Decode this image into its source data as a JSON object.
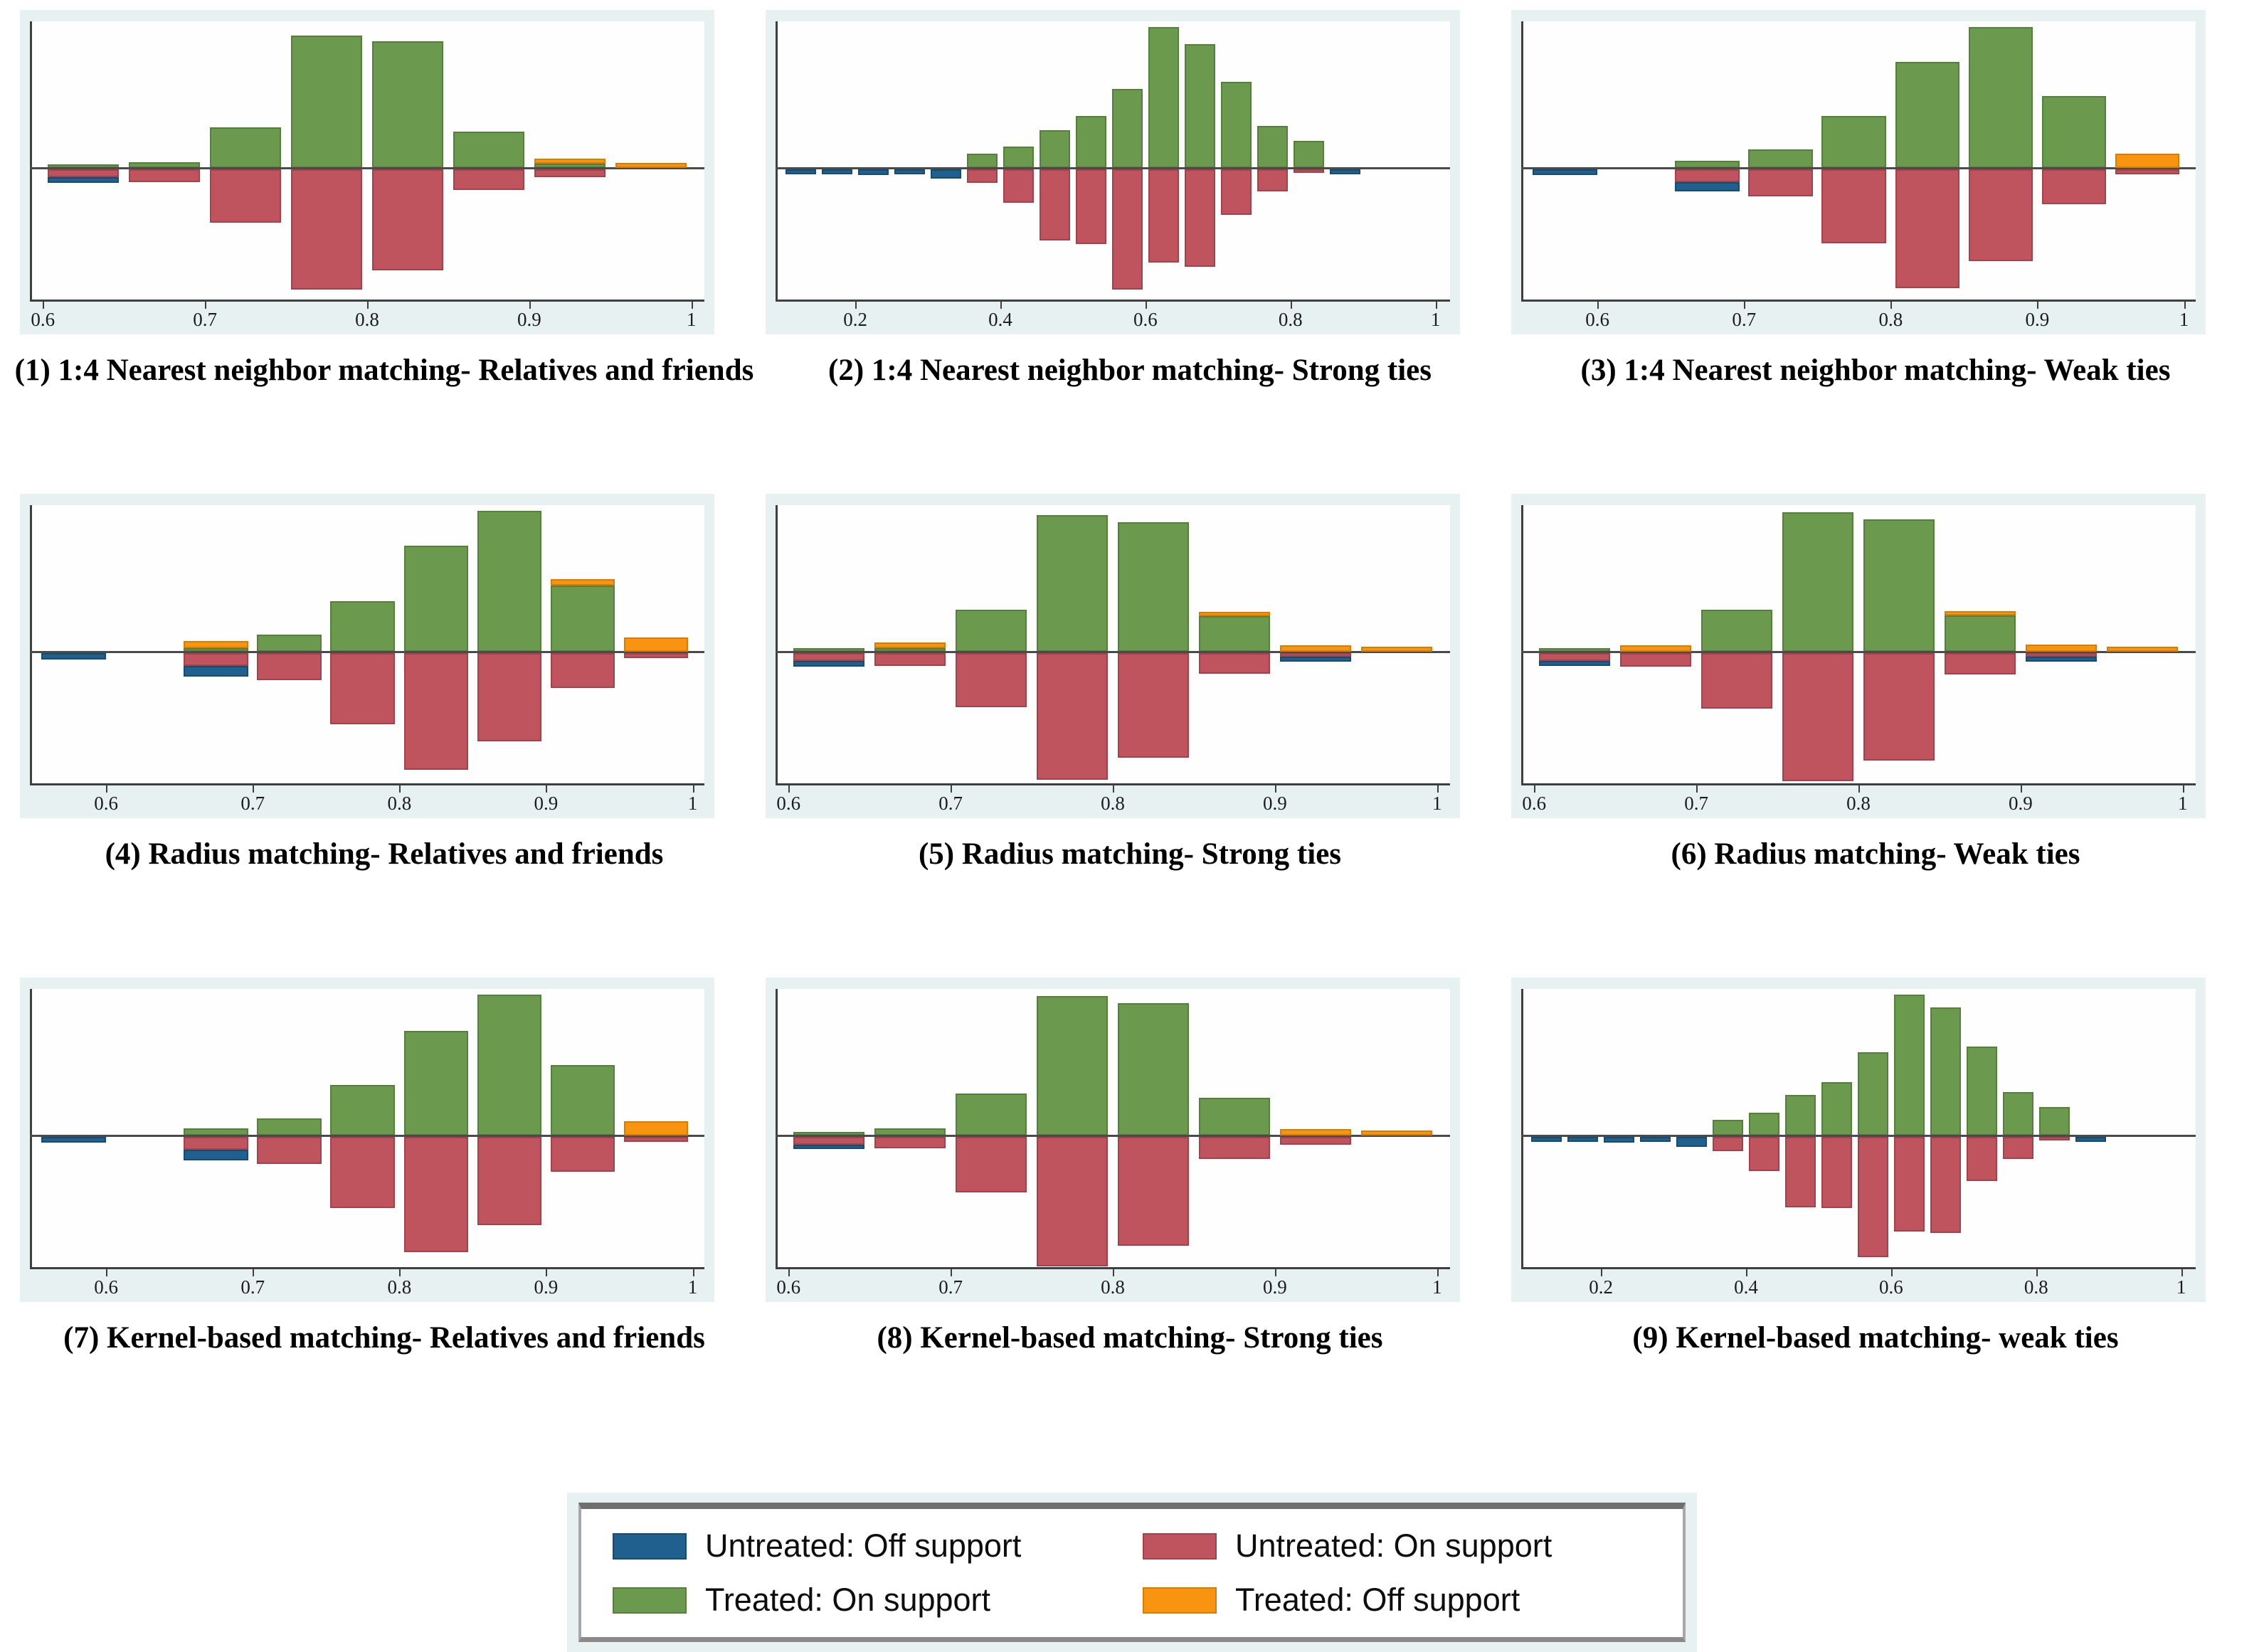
{
  "figure": {
    "background": "#ffffff"
  },
  "colors": {
    "untreated_off": {
      "fill": "#1F608E",
      "border": "#164B72"
    },
    "untreated_on": {
      "fill": "#C0545E",
      "border": "#A4414B"
    },
    "treated_on": {
      "fill": "#6B9A4E",
      "border": "#55803B"
    },
    "treated_off": {
      "fill": "#F8940F",
      "border": "#D87C04"
    },
    "axis": "#3F3F3F",
    "zero_line": "#4A4A4A",
    "panel_bg": "#E7F1F2",
    "plot_bg": "#FEFEFF"
  },
  "legend": {
    "items": [
      {
        "key": "untreated_off",
        "label": "Untreated: Off support"
      },
      {
        "key": "untreated_on",
        "label": "Untreated: On support"
      },
      {
        "key": "treated_on",
        "label": "Treated: On support"
      },
      {
        "key": "treated_off",
        "label": "Treated: Off support"
      }
    ]
  },
  "chart_data": [
    {
      "type": "bar",
      "subtype": "mirror_histogram",
      "title": "(1) 1:4 Nearest neighbor matching- Relatives and friends",
      "x_axis": {
        "min": 0.592,
        "max": 1.008,
        "ticks": [
          0.6,
          0.7,
          0.8,
          0.9,
          1
        ],
        "tick_labels": [
          "0.6",
          "0.7",
          "0.8",
          "0.9",
          "1"
        ]
      },
      "y_axis": {
        "up": "treated (relative freq, unlabeled)",
        "down": "untreated (relative freq, unlabeled)"
      },
      "bar_width": 0.044,
      "bars": [
        {
          "x": 0.625,
          "treated_on": 0.02,
          "untreated_on": 0.06,
          "untreated_off": 0.045
        },
        {
          "x": 0.675,
          "treated_on": 0.04,
          "untreated_on": 0.1
        },
        {
          "x": 0.725,
          "treated_on": 0.29,
          "untreated_on": 0.41
        },
        {
          "x": 0.775,
          "treated_on": 0.94,
          "untreated_on": 0.93
        },
        {
          "x": 0.825,
          "treated_on": 0.9,
          "untreated_on": 0.78
        },
        {
          "x": 0.875,
          "treated_on": 0.26,
          "untreated_on": 0.16
        },
        {
          "x": 0.925,
          "treated_on": 0.03,
          "treated_off": 0.035,
          "untreated_on": 0.06
        },
        {
          "x": 0.975,
          "treated_off": 0.035
        }
      ]
    },
    {
      "type": "bar",
      "subtype": "mirror_histogram",
      "title": "(2) 1:4 Nearest neighbor matching- Strong ties",
      "x_axis": {
        "min": 0.09,
        "max": 1.02,
        "ticks": [
          0.2,
          0.4,
          0.6,
          0.8,
          1
        ],
        "tick_labels": [
          "0.2",
          "0.4",
          "0.6",
          "0.8",
          "1"
        ]
      },
      "y_axis": {
        "up": "treated (relative freq, unlabeled)",
        "down": "untreated (relative freq, unlabeled)"
      },
      "bar_width": 0.042,
      "bars": [
        {
          "x": 0.125,
          "untreated_off": 0.04
        },
        {
          "x": 0.175,
          "untreated_off": 0.04
        },
        {
          "x": 0.225,
          "untreated_off": 0.045
        },
        {
          "x": 0.275,
          "untreated_off": 0.04
        },
        {
          "x": 0.325,
          "untreated_off": 0.07
        },
        {
          "x": 0.375,
          "treated_on": 0.1,
          "untreated_on": 0.105
        },
        {
          "x": 0.425,
          "treated_on": 0.15,
          "untreated_on": 0.26
        },
        {
          "x": 0.475,
          "treated_on": 0.27,
          "untreated_on": 0.55
        },
        {
          "x": 0.525,
          "treated_on": 0.37,
          "untreated_on": 0.575
        },
        {
          "x": 0.575,
          "treated_on": 0.56,
          "untreated_on": 0.93
        },
        {
          "x": 0.625,
          "treated_on": 1.0,
          "untreated_on": 0.72
        },
        {
          "x": 0.675,
          "treated_on": 0.88,
          "untreated_on": 0.75
        },
        {
          "x": 0.725,
          "treated_on": 0.61,
          "untreated_on": 0.35
        },
        {
          "x": 0.775,
          "treated_on": 0.3,
          "untreated_on": 0.17
        },
        {
          "x": 0.825,
          "treated_on": 0.19,
          "untreated_on": 0.03
        },
        {
          "x": 0.875,
          "untreated_off": 0.04
        }
      ]
    },
    {
      "type": "bar",
      "subtype": "mirror_histogram",
      "title": "(3) 1:4 Nearest neighbor matching- Weak ties",
      "x_axis": {
        "min": 0.548,
        "max": 1.008,
        "ticks": [
          0.6,
          0.7,
          0.8,
          0.9,
          1
        ],
        "tick_labels": [
          "0.6",
          "0.7",
          "0.8",
          "0.9",
          "1"
        ]
      },
      "y_axis": {
        "up": "treated (relative freq, unlabeled)",
        "down": "untreated (relative freq, unlabeled)"
      },
      "bar_width": 0.044,
      "bars": [
        {
          "x": 0.578,
          "untreated_off": 0.045
        },
        {
          "x": 0.675,
          "treated_on": 0.05,
          "untreated_on": 0.1,
          "untreated_off": 0.07
        },
        {
          "x": 0.725,
          "treated_on": 0.13,
          "untreated_on": 0.21
        },
        {
          "x": 0.775,
          "treated_on": 0.37,
          "untreated_on": 0.57
        },
        {
          "x": 0.825,
          "treated_on": 0.75,
          "untreated_on": 0.92
        },
        {
          "x": 0.875,
          "treated_on": 1.0,
          "untreated_on": 0.71
        },
        {
          "x": 0.925,
          "treated_on": 0.51,
          "untreated_on": 0.27
        },
        {
          "x": 0.975,
          "treated_off": 0.1,
          "untreated_on": 0.04
        }
      ]
    },
    {
      "type": "bar",
      "subtype": "mirror_histogram",
      "title": "(4) Radius matching- Relatives and friends",
      "x_axis": {
        "min": 0.548,
        "max": 1.008,
        "ticks": [
          0.6,
          0.7,
          0.8,
          0.9,
          1
        ],
        "tick_labels": [
          "0.6",
          "0.7",
          "0.8",
          "0.9",
          "1"
        ]
      },
      "y_axis": {
        "up": "treated (relative freq, unlabeled)",
        "down": "untreated (relative freq, unlabeled)"
      },
      "bar_width": 0.044,
      "bars": [
        {
          "x": 0.578,
          "untreated_off": 0.05
        },
        {
          "x": 0.675,
          "treated_on": 0.015,
          "treated_off": 0.05,
          "untreated_on": 0.1,
          "untreated_off": 0.08
        },
        {
          "x": 0.725,
          "treated_on": 0.12,
          "untreated_on": 0.21
        },
        {
          "x": 0.775,
          "treated_on": 0.36,
          "untreated_on": 0.55
        },
        {
          "x": 0.825,
          "treated_on": 0.75,
          "untreated_on": 0.9
        },
        {
          "x": 0.875,
          "treated_on": 1.0,
          "untreated_on": 0.68
        },
        {
          "x": 0.925,
          "treated_on": 0.47,
          "treated_off": 0.045,
          "untreated_on": 0.27
        },
        {
          "x": 0.975,
          "treated_off": 0.1,
          "untreated_on": 0.04
        }
      ]
    },
    {
      "type": "bar",
      "subtype": "mirror_histogram",
      "title": "(5) Radius matching- Strong ties",
      "x_axis": {
        "min": 0.592,
        "max": 1.008,
        "ticks": [
          0.6,
          0.7,
          0.8,
          0.9,
          1
        ],
        "tick_labels": [
          "0.6",
          "0.7",
          "0.8",
          "0.9",
          "1"
        ]
      },
      "y_axis": {
        "up": "treated (relative freq, unlabeled)",
        "down": "untreated (relative freq, unlabeled)"
      },
      "bar_width": 0.044,
      "bars": [
        {
          "x": 0.625,
          "treated_on": 0.02,
          "untreated_on": 0.06,
          "untreated_off": 0.045
        },
        {
          "x": 0.675,
          "treated_on": 0.012,
          "treated_off": 0.04,
          "untreated_on": 0.1
        },
        {
          "x": 0.725,
          "treated_on": 0.3,
          "untreated_on": 0.42
        },
        {
          "x": 0.775,
          "treated_on": 0.97,
          "untreated_on": 0.98
        },
        {
          "x": 0.825,
          "treated_on": 0.92,
          "untreated_on": 0.81
        },
        {
          "x": 0.875,
          "treated_on": 0.25,
          "treated_off": 0.03,
          "untreated_on": 0.16
        },
        {
          "x": 0.925,
          "treated_off": 0.045,
          "untreated_on": 0.02,
          "untreated_off": 0.04
        },
        {
          "x": 0.975,
          "treated_off": 0.035
        }
      ]
    },
    {
      "type": "bar",
      "subtype": "mirror_histogram",
      "title": "(6) Radius matching- Weak ties",
      "x_axis": {
        "min": 0.592,
        "max": 1.008,
        "ticks": [
          0.6,
          0.7,
          0.8,
          0.9,
          1
        ],
        "tick_labels": [
          "0.6",
          "0.7",
          "0.8",
          "0.9",
          "1"
        ]
      },
      "y_axis": {
        "up": "treated (relative freq, unlabeled)",
        "down": "untreated (relative freq, unlabeled)"
      },
      "bar_width": 0.044,
      "bars": [
        {
          "x": 0.625,
          "treated_on": 0.02,
          "untreated_on": 0.06,
          "untreated_off": 0.04
        },
        {
          "x": 0.675,
          "treated_off": 0.045,
          "untreated_on": 0.105
        },
        {
          "x": 0.725,
          "treated_on": 0.3,
          "untreated_on": 0.43
        },
        {
          "x": 0.775,
          "treated_on": 0.99,
          "untreated_on": 0.99
        },
        {
          "x": 0.825,
          "treated_on": 0.94,
          "untreated_on": 0.83
        },
        {
          "x": 0.875,
          "treated_on": 0.26,
          "treated_off": 0.03,
          "untreated_on": 0.165
        },
        {
          "x": 0.925,
          "treated_off": 0.05,
          "untreated_on": 0.02,
          "untreated_off": 0.04
        },
        {
          "x": 0.975,
          "treated_off": 0.035
        }
      ]
    },
    {
      "type": "bar",
      "subtype": "mirror_histogram",
      "title": "(7) Kernel-based matching- Relatives and friends",
      "x_axis": {
        "min": 0.548,
        "max": 1.008,
        "ticks": [
          0.6,
          0.7,
          0.8,
          0.9,
          1
        ],
        "tick_labels": [
          "0.6",
          "0.7",
          "0.8",
          "0.9",
          "1"
        ]
      },
      "y_axis": {
        "up": "treated (relative freq, unlabeled)",
        "down": "untreated (relative freq, unlabeled)"
      },
      "bar_width": 0.044,
      "bars": [
        {
          "x": 0.578,
          "untreated_off": 0.045
        },
        {
          "x": 0.675,
          "treated_on": 0.05,
          "untreated_on": 0.1,
          "untreated_off": 0.08
        },
        {
          "x": 0.725,
          "treated_on": 0.12,
          "untreated_on": 0.21
        },
        {
          "x": 0.775,
          "treated_on": 0.36,
          "untreated_on": 0.55
        },
        {
          "x": 0.825,
          "treated_on": 0.74,
          "untreated_on": 0.89
        },
        {
          "x": 0.875,
          "treated_on": 1.0,
          "untreated_on": 0.68
        },
        {
          "x": 0.925,
          "treated_on": 0.5,
          "untreated_on": 0.27
        },
        {
          "x": 0.975,
          "treated_off": 0.1,
          "untreated_on": 0.04
        }
      ]
    },
    {
      "type": "bar",
      "subtype": "mirror_histogram",
      "title": "(8) Kernel-based matching- Strong ties",
      "x_axis": {
        "min": 0.592,
        "max": 1.008,
        "ticks": [
          0.6,
          0.7,
          0.8,
          0.9,
          1
        ],
        "tick_labels": [
          "0.6",
          "0.7",
          "0.8",
          "0.9",
          "1"
        ]
      },
      "y_axis": {
        "up": "treated (relative freq, unlabeled)",
        "down": "untreated (relative freq, unlabeled)"
      },
      "bar_width": 0.044,
      "bars": [
        {
          "x": 0.625,
          "treated_on": 0.015,
          "untreated_on": 0.06,
          "untreated_off": 0.03
        },
        {
          "x": 0.675,
          "treated_on": 0.05,
          "untreated_on": 0.09
        },
        {
          "x": 0.725,
          "treated_on": 0.3,
          "untreated_on": 0.43
        },
        {
          "x": 0.775,
          "treated_on": 0.99,
          "untreated_on": 1.0
        },
        {
          "x": 0.825,
          "treated_on": 0.94,
          "untreated_on": 0.84
        },
        {
          "x": 0.875,
          "treated_on": 0.27,
          "untreated_on": 0.17
        },
        {
          "x": 0.925,
          "treated_off": 0.045,
          "untreated_on": 0.06
        },
        {
          "x": 0.975,
          "treated_off": 0.035
        }
      ]
    },
    {
      "type": "bar",
      "subtype": "mirror_histogram",
      "title": "(9) Kernel-based matching- weak ties",
      "x_axis": {
        "min": 0.09,
        "max": 1.02,
        "ticks": [
          0.2,
          0.4,
          0.6,
          0.8,
          1
        ],
        "tick_labels": [
          "0.2",
          "0.4",
          "0.6",
          "0.8",
          "1"
        ]
      },
      "y_axis": {
        "up": "treated (relative freq, unlabeled)",
        "down": "untreated (relative freq, unlabeled)"
      },
      "bar_width": 0.042,
      "bars": [
        {
          "x": 0.125,
          "untreated_off": 0.04
        },
        {
          "x": 0.175,
          "untreated_off": 0.04
        },
        {
          "x": 0.225,
          "untreated_off": 0.045
        },
        {
          "x": 0.275,
          "untreated_off": 0.04
        },
        {
          "x": 0.325,
          "untreated_off": 0.075
        },
        {
          "x": 0.375,
          "treated_on": 0.11,
          "untreated_on": 0.11
        },
        {
          "x": 0.425,
          "treated_on": 0.16,
          "untreated_on": 0.265
        },
        {
          "x": 0.475,
          "treated_on": 0.29,
          "untreated_on": 0.545
        },
        {
          "x": 0.525,
          "treated_on": 0.38,
          "untreated_on": 0.55
        },
        {
          "x": 0.575,
          "treated_on": 0.59,
          "untreated_on": 0.93
        },
        {
          "x": 0.625,
          "treated_on": 1.0,
          "untreated_on": 0.73
        },
        {
          "x": 0.675,
          "treated_on": 0.91,
          "untreated_on": 0.74
        },
        {
          "x": 0.725,
          "treated_on": 0.63,
          "untreated_on": 0.34
        },
        {
          "x": 0.775,
          "treated_on": 0.31,
          "untreated_on": 0.17
        },
        {
          "x": 0.825,
          "treated_on": 0.2,
          "untreated_on": 0.03
        },
        {
          "x": 0.875,
          "untreated_off": 0.04
        }
      ]
    }
  ]
}
